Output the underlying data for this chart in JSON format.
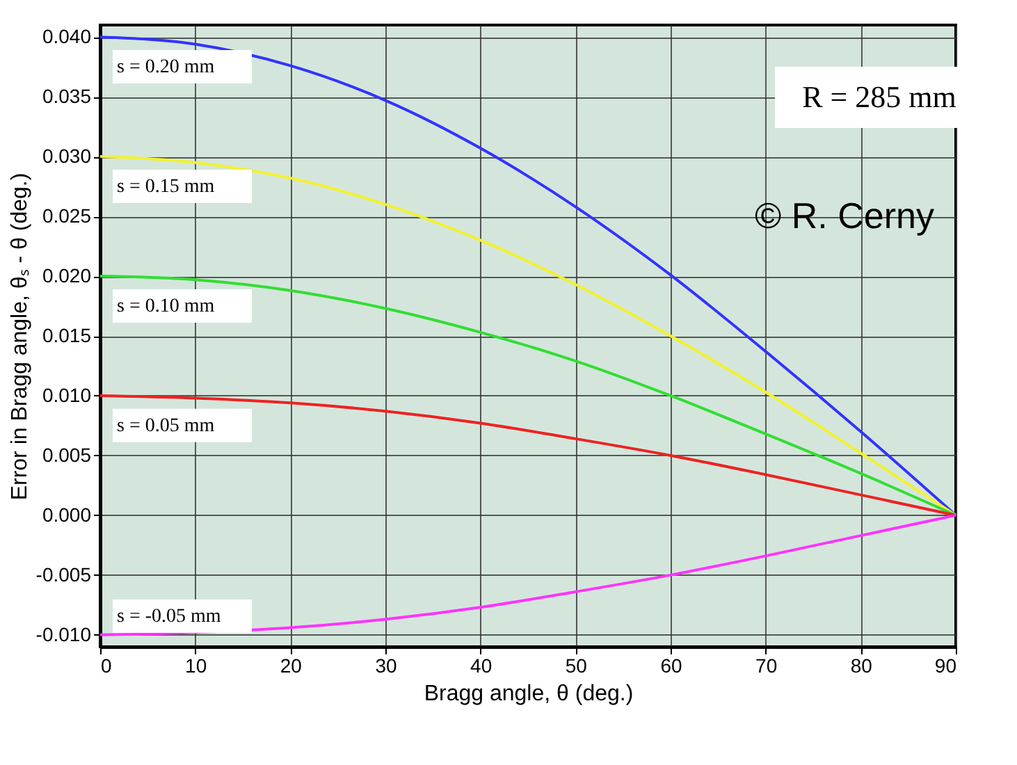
{
  "chart_data": {
    "type": "line",
    "xlabel": "Bragg angle, θ (deg.)",
    "ylabel": "Error in Bragg angle, θₛ - θ (deg.)",
    "x": [
      0,
      10,
      20,
      30,
      40,
      50,
      60,
      70,
      80,
      90
    ],
    "series": [
      {
        "name": "s = 0.20 mm",
        "color": "#3333ff",
        "values": [
          0.04,
          0.0394,
          0.0376,
          0.0347,
          0.0307,
          0.0258,
          0.0201,
          0.0137,
          0.007,
          0
        ]
      },
      {
        "name": "s = 0.15 mm",
        "color": "#f2f230",
        "values": [
          0.03,
          0.0295,
          0.0282,
          0.026,
          0.023,
          0.0193,
          0.015,
          0.0103,
          0.0052,
          0
        ]
      },
      {
        "name": "s = 0.10 mm",
        "color": "#33dd33",
        "values": [
          0.02,
          0.0197,
          0.0188,
          0.0173,
          0.0153,
          0.0129,
          0.01,
          0.0068,
          0.0035,
          0
        ]
      },
      {
        "name": "s = 0.05 mm",
        "color": "#ee2222",
        "values": [
          0.01,
          0.0098,
          0.0094,
          0.0087,
          0.0077,
          0.0064,
          0.005,
          0.0034,
          0.0017,
          0
        ]
      },
      {
        "name": "s = -0.05 mm",
        "color": "#ff33ff",
        "values": [
          -0.01,
          -0.0098,
          -0.0094,
          -0.0087,
          -0.0077,
          -0.0064,
          -0.005,
          -0.0034,
          -0.0017,
          0
        ]
      }
    ],
    "xlim": [
      0,
      90
    ],
    "xticks": [
      0,
      10,
      20,
      30,
      40,
      50,
      60,
      70,
      80,
      90
    ],
    "ylim": [
      -0.011,
      0.041
    ],
    "yticks": [
      {
        "value": -0.01,
        "label": "-0.010"
      },
      {
        "value": -0.005,
        "label": "-0.005"
      },
      {
        "value": 0,
        "label": "0.000"
      },
      {
        "value": 0.005,
        "label": "0.005"
      },
      {
        "value": 0.01,
        "label": "0.010"
      },
      {
        "value": 0.015,
        "label": "0.015"
      },
      {
        "value": 0.02,
        "label": "0.020"
      },
      {
        "value": 0.025,
        "label": "0.025"
      },
      {
        "value": 0.03,
        "label": "0.030"
      },
      {
        "value": 0.035,
        "label": "0.035"
      },
      {
        "value": 0.04,
        "label": "0.040"
      }
    ],
    "grid": true,
    "legend": false,
    "marker": "none",
    "line_style": "solid",
    "annotations": [
      "R = 285 mm",
      "© R. Cerny"
    ]
  }
}
